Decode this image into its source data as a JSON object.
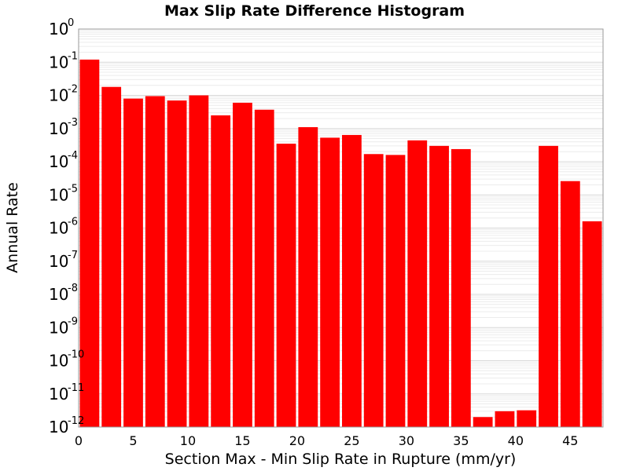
{
  "chart_data": {
    "type": "bar",
    "title": "Max Slip Rate Difference Histogram",
    "xlabel": "Section Max - Min Slip Rate in Rupture (mm/yr)",
    "ylabel": "Annual Rate",
    "y_scale": "log",
    "ylim": [
      1e-12,
      1
    ],
    "xlim": [
      0,
      48
    ],
    "bin_width": 2,
    "bar_color": "#ff0000",
    "grid": true,
    "x_ticks": [
      "0",
      "5",
      "10",
      "15",
      "20",
      "25",
      "30",
      "35",
      "40",
      "45"
    ],
    "y_ticks": [
      {
        "base": "10",
        "exp": "0"
      },
      {
        "base": "10",
        "exp": "-1"
      },
      {
        "base": "10",
        "exp": "-2"
      },
      {
        "base": "10",
        "exp": "-3"
      },
      {
        "base": "10",
        "exp": "-4"
      },
      {
        "base": "10",
        "exp": "-5"
      },
      {
        "base": "10",
        "exp": "-6"
      },
      {
        "base": "10",
        "exp": "-7"
      },
      {
        "base": "10",
        "exp": "-8"
      },
      {
        "base": "10",
        "exp": "-9"
      },
      {
        "base": "10",
        "exp": "-10"
      },
      {
        "base": "10",
        "exp": "-11"
      },
      {
        "base": "10",
        "exp": "-12"
      }
    ],
    "x": [
      1,
      3,
      5,
      7,
      9,
      11,
      13,
      15,
      17,
      19,
      21,
      23,
      25,
      27,
      29,
      31,
      33,
      35,
      37,
      39,
      41,
      43,
      45,
      47
    ],
    "values": [
      0.12,
      0.018,
      0.008,
      0.0095,
      0.007,
      0.01,
      0.0025,
      0.006,
      0.0037,
      0.00035,
      0.0011,
      0.00053,
      0.00064,
      0.00017,
      0.00016,
      0.00044,
      0.0003,
      0.00024,
      2e-12,
      3e-12,
      3.2e-12,
      0.0003,
      2.6e-05,
      1.6e-06
    ]
  }
}
